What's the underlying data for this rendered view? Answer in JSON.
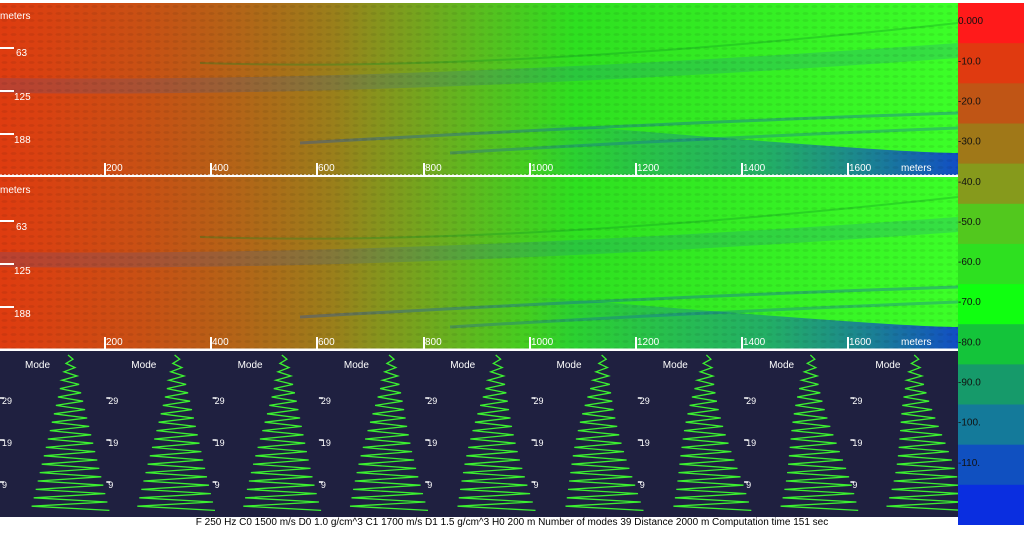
{
  "field_panels": [
    {
      "unit_label": "meters",
      "depth_ticks": [
        "63",
        "125",
        "188"
      ],
      "range_ticks": [
        "200",
        "400",
        "600",
        "800",
        "1000",
        "1200",
        "1400",
        "1600"
      ],
      "range_unit": "meters"
    },
    {
      "unit_label": "meters",
      "depth_ticks": [
        "63",
        "125",
        "188"
      ],
      "range_ticks": [
        "200",
        "400",
        "600",
        "800",
        "1000",
        "1200",
        "1400",
        "1600"
      ],
      "range_unit": "meters"
    }
  ],
  "mode_panel": {
    "title": "Mode",
    "tick_labels": [
      "29",
      "19",
      "9"
    ],
    "count": 9
  },
  "colorbar": {
    "labels": [
      "0.000",
      "-10.0",
      "-20.0",
      "-30.0",
      "-40.0",
      "-50.0",
      "-60.0",
      "-70.0",
      "-80.0",
      "-90.0",
      "-100.",
      "-110."
    ],
    "colors": [
      "#ff1a1a",
      "#e03a10",
      "#c05515",
      "#a07818",
      "#869a1c",
      "#52c81e",
      "#2ee020",
      "#10ff10",
      "#14c43a",
      "#169a6a",
      "#147a9a",
      "#1050c0",
      "#0a2ee0"
    ]
  },
  "caption": "F 250 Hz C0 1500 m/s D0 1.0 g/cm^3 C1 1700 m/s D1 1.5 g/cm^3 H0 200 m Number of modes 39 Distance 2000 m Computation time 151 sec"
}
